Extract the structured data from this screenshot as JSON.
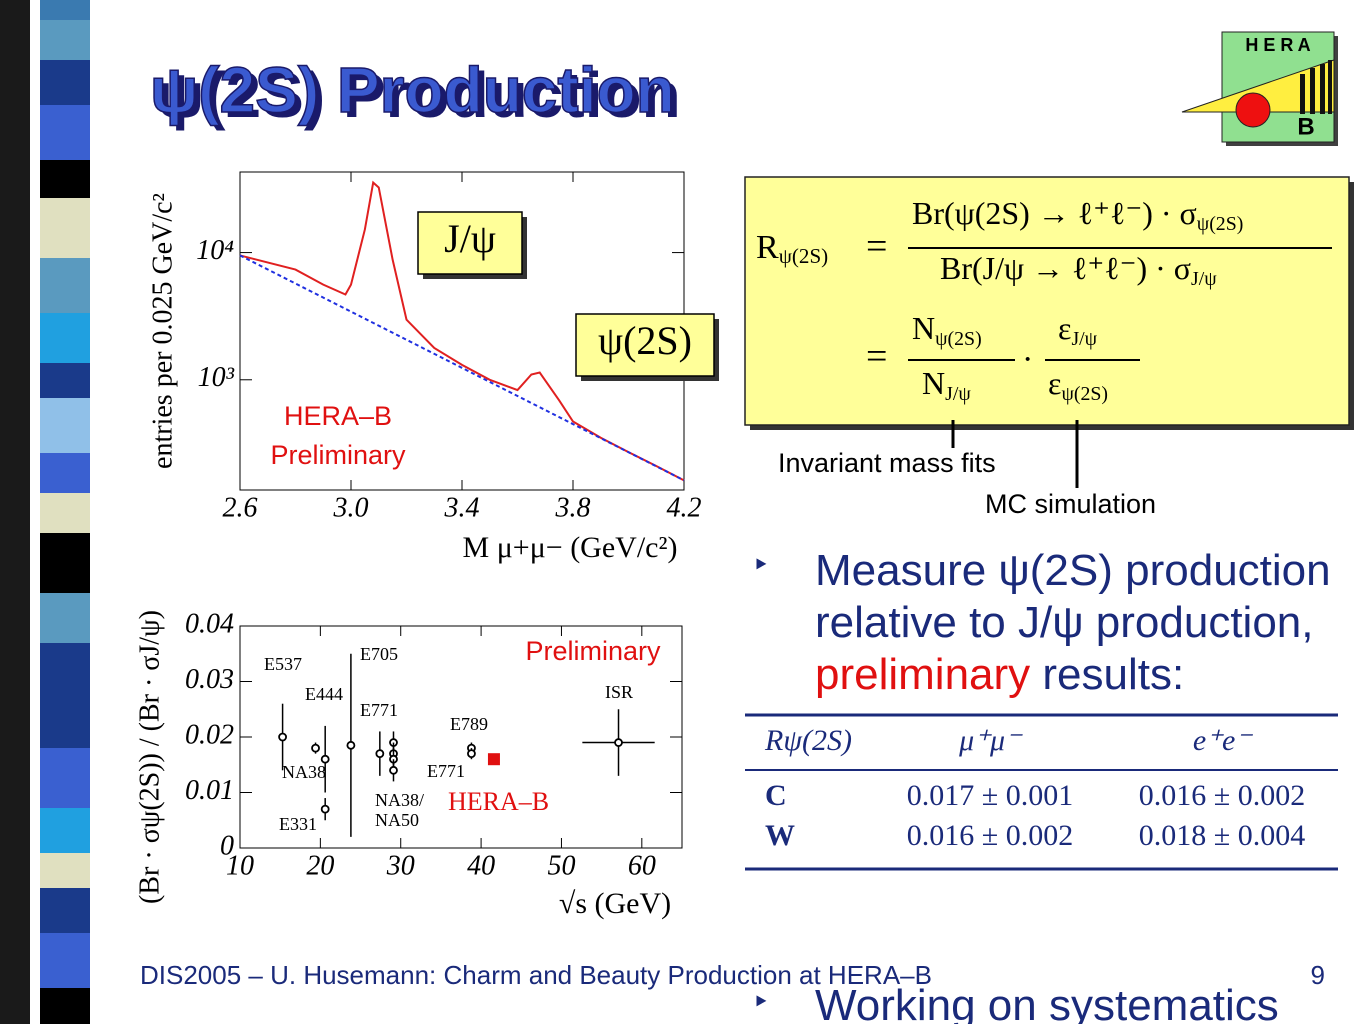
{
  "header": {
    "title": "ψ(2S) Production",
    "logo_top": "H E R A",
    "logo_bottom": "B"
  },
  "chart_data": [
    {
      "type": "line",
      "ylabel": "entries per 0.025 GeV/c²",
      "xlabel": "M μ+μ− (GeV/c²)",
      "xlim": [
        2.6,
        4.2
      ],
      "xticks": [
        2.6,
        {
          "value": 3,
          "label": "3.0"
        },
        3.4,
        3.8,
        4.2
      ],
      "ylim": [
        136,
        43000
      ],
      "log_y": true,
      "yticks": [
        {
          "value": 1000,
          "label": "10³"
        },
        {
          "value": 10000,
          "label": "10⁴"
        }
      ],
      "series": [
        {
          "color": "#e02020",
          "dash": false,
          "x": [
            2.6,
            2.8,
            2.9,
            2.98,
            3.0,
            3.05,
            3.08,
            3.1,
            3.15,
            3.2,
            3.3,
            3.4,
            3.5,
            3.6,
            3.65,
            3.68,
            3.75,
            3.8,
            3.9,
            4.0,
            4.1,
            4.2
          ],
          "values": [
            9500,
            7350,
            5600,
            4680,
            5600,
            15200,
            35500,
            32500,
            8800,
            2970,
            1780,
            1310,
            1000,
            830,
            1100,
            1140,
            690,
            470,
            350,
            270,
            210,
            162
          ]
        },
        {
          "color": "#2030e0",
          "dash": true,
          "x": [
            2.6,
            4.2
          ],
          "values": [
            9500,
            162
          ]
        }
      ],
      "annotations": [
        "J/ψ",
        "ψ(2S)",
        "HERA–B",
        "Preliminary"
      ]
    },
    {
      "type": "scatter",
      "ylabel": "(Br · σψ(2S)) / (Br · σJ/ψ)",
      "xlabel": "√s (GeV)",
      "xlim": [
        10,
        65
      ],
      "xticks": [
        10,
        20,
        30,
        40,
        50,
        60
      ],
      "ylim": [
        0,
        0.04
      ],
      "yticks": [
        0,
        0.01,
        0.02,
        0.03,
        0.04
      ],
      "series": [
        {
          "color": "#000000",
          "marker": "circle",
          "x": [
            15.3,
            19.4,
            20.6,
            20.6,
            23.8,
            27.4,
            29.1,
            29.1,
            29.1,
            29.1,
            38.8,
            38.8
          ],
          "values": [
            0.02,
            0.018,
            0.016,
            0.007,
            0.0185,
            0.017,
            0.019,
            0.017,
            0.016,
            0.014,
            0.018,
            0.017
          ],
          "errors": [
            0.006,
            0.001,
            0.006,
            0.002,
            0.0165,
            0.004,
            0.002,
            0.002,
            0.002,
            0.002,
            0.001,
            0.001
          ]
        },
        {
          "color": "#000000",
          "marker": "circle",
          "x": [
            57.1
          ],
          "values": [
            0.019
          ],
          "errors": [
            0.006
          ],
          "xerrors": [
            4.5
          ]
        },
        {
          "color": "#e01010",
          "marker": "square",
          "x": [
            41.6
          ],
          "values": [
            0.016
          ]
        }
      ],
      "annotations": [
        "E537",
        "E444",
        "NA38",
        "E331",
        "E705",
        "E771",
        "NA38/",
        "NA50",
        "E789",
        "E771",
        "HERA–B",
        "ISR",
        "Preliminary"
      ]
    }
  ],
  "formula": {
    "lhs": "R",
    "lhs_sub": "ψ(2S)",
    "eq": "=",
    "num1": "Br(ψ(2S) → ℓ⁺ℓ⁻) · σ",
    "num1_sub": "ψ(2S)",
    "den1": "Br(J/ψ → ℓ⁺ℓ⁻) · σ",
    "den1_sub": "J/ψ",
    "num2": "N",
    "num2_sub": "ψ(2S)",
    "den2": "N",
    "den2_sub": "J/ψ",
    "dot": "·",
    "num3": "ε",
    "num3_sub": "J/ψ",
    "den3": "ε",
    "den3_sub": "ψ(2S)"
  },
  "notes": [
    "Invariant mass fits",
    "MC simulation"
  ],
  "bullets": [
    [
      "Measure ψ(2S) production relative to J/ψ production, ",
      "preliminary",
      " results:"
    ],
    [
      "Working on systematics"
    ]
  ],
  "table": {
    "header": [
      "Rψ(2S)",
      "μ⁺μ⁻",
      "e⁺e⁻"
    ],
    "rows": [
      [
        "C",
        "0.017 ± 0.001",
        "0.016 ± 0.002"
      ],
      [
        "W",
        "0.016 ± 0.002",
        "0.018 ± 0.004"
      ]
    ]
  },
  "footer": {
    "text": "DIS2005 – U. Husemann: Charm and Beauty Production at HERA–B",
    "page": "9"
  }
}
